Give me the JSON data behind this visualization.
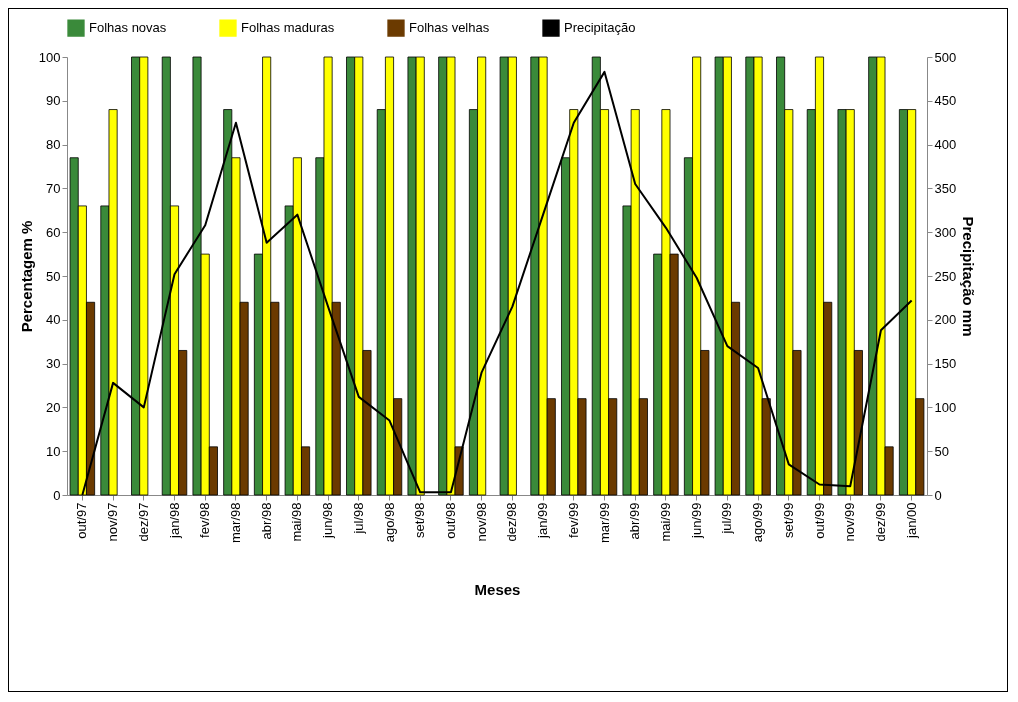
{
  "chart_data": {
    "type": "bar",
    "xlabel": "Meses",
    "ylabel": "Percentagem %",
    "y2label": "Precipitação mm",
    "categories": [
      "out/97",
      "nov/97",
      "dez/97",
      "jan/98",
      "fev/98",
      "mar/98",
      "abr/98",
      "mai/98",
      "jun/98",
      "jul/98",
      "ago/98",
      "set/98",
      "out/98",
      "nov/98",
      "dez/98",
      "jan/99",
      "fev/99",
      "mar/99",
      "abr/99",
      "mai/99",
      "jun/99",
      "jul/99",
      "ago/99",
      "set/99",
      "out/99",
      "nov/99",
      "dez/99",
      "jan/00"
    ],
    "series": [
      {
        "name": "Folhas novas",
        "color": "#3a8a3a",
        "values": [
          77,
          66,
          100,
          100,
          100,
          88,
          55,
          66,
          77,
          100,
          88,
          100,
          100,
          88,
          100,
          100,
          77,
          100,
          66,
          55,
          77,
          100,
          100,
          100,
          88,
          88,
          100,
          88
        ]
      },
      {
        "name": "Folhas maduras",
        "color": "#ffff00",
        "values": [
          66,
          88,
          100,
          66,
          55,
          77,
          100,
          77,
          100,
          100,
          100,
          100,
          100,
          100,
          100,
          100,
          88,
          88,
          88,
          88,
          100,
          100,
          100,
          88,
          100,
          88,
          100,
          88
        ]
      },
      {
        "name": "Folhas velhas",
        "color": "#6b3a00",
        "values": [
          44,
          0,
          0,
          33,
          11,
          44,
          44,
          11,
          44,
          33,
          22,
          0,
          11,
          0,
          0,
          22,
          22,
          22,
          22,
          55,
          33,
          44,
          22,
          33,
          44,
          33,
          11,
          22
        ]
      },
      {
        "name": "Precipitação",
        "type": "line",
        "axis": "y2",
        "color": "#000000",
        "values": [
          0,
          128,
          100,
          252,
          308,
          425,
          288,
          320,
          215,
          112,
          85,
          3,
          3,
          140,
          215,
          320,
          425,
          483,
          355,
          305,
          248,
          170,
          145,
          35,
          12,
          10,
          188,
          222
        ]
      }
    ],
    "ylim": [
      0,
      100
    ],
    "yticks": [
      0,
      10,
      20,
      30,
      40,
      50,
      60,
      70,
      80,
      90,
      100
    ],
    "y2lim": [
      0,
      500
    ],
    "y2ticks": [
      0,
      50,
      100,
      150,
      200,
      250,
      300,
      350,
      400,
      450,
      500
    ],
    "legend": "top",
    "grid": false
  }
}
